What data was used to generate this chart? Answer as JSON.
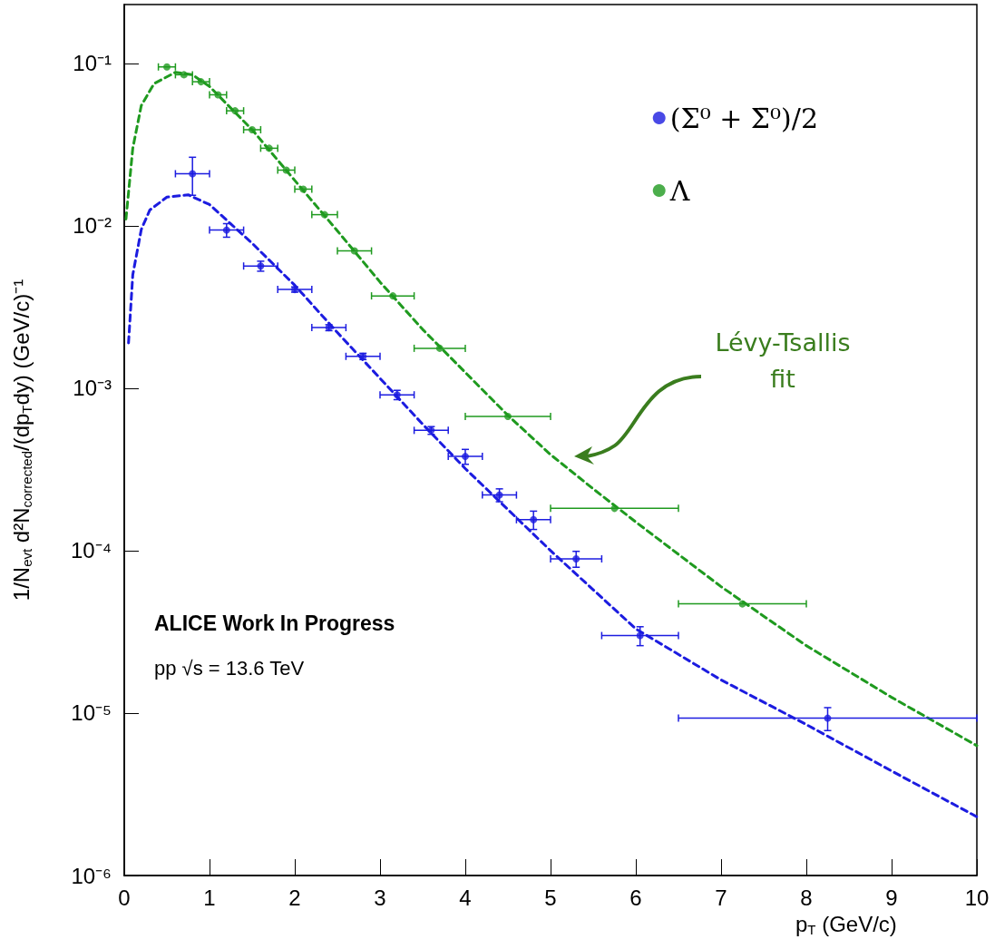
{
  "chart_data": {
    "type": "scatter",
    "xlabel": "p$_{T}$ (GeV/c)",
    "ylabel": "1/N$_{evt}$ d²N$_{corrected}$/(dp$_{T}$dy) (GeV/c)⁻¹",
    "log": "y",
    "xlim": [
      0,
      10
    ],
    "xticks": [
      0,
      1,
      2,
      3,
      4,
      5,
      6,
      7,
      8,
      9,
      10
    ],
    "ylim": [
      1e-06,
      0.23
    ],
    "yticks": [
      {
        "value": 1e-06,
        "label": "10⁻⁶"
      },
      {
        "value": 1e-05,
        "label": "10⁻⁵"
      },
      {
        "value": 0.0001,
        "label": "10⁻⁴"
      },
      {
        "value": 0.001,
        "label": "10⁻³"
      },
      {
        "value": 0.01,
        "label": "10⁻²"
      },
      {
        "value": 0.1,
        "label": "10⁻¹"
      }
    ],
    "grid": false,
    "legend": "top right",
    "marker": "circle",
    "annotations": [
      "ALICE Work In Progress",
      "pp √s = 13.6 TeV",
      "Lévy-Tsallis fit"
    ],
    "series": [
      {
        "name": "(Σ⁰ + Σ̄⁰)/2",
        "color": "#1c1ce0",
        "x": [
          0.8,
          1.2,
          1.6,
          2.0,
          2.4,
          2.8,
          3.2,
          3.6,
          4.0,
          4.4,
          4.8,
          5.3,
          6.05,
          8.25
        ],
        "values": [
          0.0209,
          0.0094,
          0.00565,
          0.00405,
          0.00236,
          0.00157,
          0.00091,
          0.00055,
          0.00038,
          0.00022,
          0.000155,
          8.9e-05,
          3e-05,
          9.3e-06
        ],
        "errors": [
          0.0055,
          0.0009,
          0.0004,
          0.00015,
          0.0001,
          7e-05,
          6e-05,
          3e-05,
          4e-05,
          2e-05,
          2e-05,
          1e-05,
          4e-06,
          1.5e-06
        ],
        "xerrors": [
          0.2,
          0.2,
          0.2,
          0.2,
          0.2,
          0.2,
          0.2,
          0.2,
          0.2,
          0.2,
          0.2,
          0.3,
          0.45,
          1.75
        ]
      },
      {
        "name": "Λ",
        "color": "#1f9a1f",
        "x": [
          0.5,
          0.7,
          0.9,
          1.1,
          1.3,
          1.5,
          1.7,
          1.9,
          2.1,
          2.35,
          2.7,
          3.15,
          3.7,
          4.5,
          5.75,
          7.25
        ],
        "values": [
          0.095,
          0.085,
          0.077,
          0.064,
          0.051,
          0.039,
          0.03,
          0.022,
          0.0168,
          0.0117,
          0.007,
          0.0037,
          0.00176,
          0.00067,
          0.000182,
          4.7e-05
        ],
        "xerrors": [
          0.1,
          0.1,
          0.1,
          0.1,
          0.1,
          0.1,
          0.1,
          0.1,
          0.1,
          0.15,
          0.2,
          0.25,
          0.3,
          0.5,
          0.75,
          0.75
        ]
      },
      {
        "type": "line",
        "color": "#1c1ce0",
        "marker": "none",
        "line_style": "dashed",
        "x": [
          0.05,
          0.1,
          0.2,
          0.3,
          0.5,
          0.75,
          1.0,
          1.5,
          2,
          2.5,
          3,
          3.5,
          4,
          5,
          6,
          7,
          8,
          9,
          10
        ],
        "values": [
          0.0019,
          0.005,
          0.0095,
          0.0125,
          0.015,
          0.0155,
          0.0135,
          0.0078,
          0.0043,
          0.0022,
          0.00115,
          0.0006,
          0.00032,
          0.0001,
          3.3e-05,
          1.6e-05,
          8.5e-06,
          4.4e-06,
          2.3e-06
        ]
      },
      {
        "type": "line",
        "color": "#1f9a1f",
        "marker": "none",
        "line_style": "dashed",
        "x": [
          0.02,
          0.1,
          0.2,
          0.35,
          0.6,
          0.8,
          1.0,
          1.5,
          2,
          2.5,
          3,
          3.5,
          4,
          4.5,
          5,
          5.5,
          6,
          7,
          8,
          9,
          10
        ],
        "values": [
          0.011,
          0.03,
          0.055,
          0.075,
          0.088,
          0.085,
          0.072,
          0.039,
          0.019,
          0.0093,
          0.0045,
          0.0023,
          0.00125,
          0.00068,
          0.00039,
          0.00024,
          0.00015,
          6e-05,
          2.6e-05,
          1.25e-05,
          6.3e-06
        ]
      }
    ]
  }
}
